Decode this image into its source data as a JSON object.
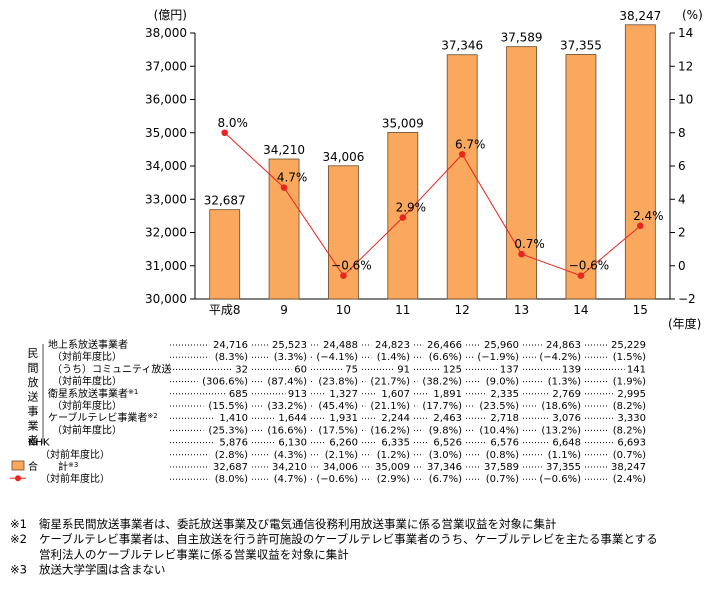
{
  "chart_data": {
    "type": "bar",
    "categories": [
      "平成8",
      "9",
      "10",
      "11",
      "12",
      "13",
      "14",
      "15"
    ],
    "x_unit": "(年度)",
    "left_unit": "(億円)",
    "right_unit": "(%)",
    "left_axis": {
      "ylim": [
        30000,
        38000
      ],
      "ticks": [
        "30,000",
        "31,000",
        "32,000",
        "33,000",
        "34,000",
        "35,000",
        "36,000",
        "37,000",
        "38,000"
      ]
    },
    "right_axis": {
      "ylim": [
        -2,
        14
      ],
      "ticks": [
        "-2",
        "0",
        "2",
        "4",
        "6",
        "8",
        "10",
        "12",
        "14"
      ]
    },
    "series": [
      {
        "name": "合計",
        "kind": "bar",
        "color": "#F9A85E",
        "values": [
          32687,
          34210,
          34006,
          35009,
          37346,
          37589,
          37355,
          38247
        ],
        "labels": [
          "32,687",
          "34,210",
          "34,006",
          "35,009",
          "37,346",
          "37,589",
          "37,355",
          "38,247"
        ]
      },
      {
        "name": "対前年度比",
        "kind": "line",
        "color": "#E8251F",
        "values": [
          8.0,
          4.7,
          -0.6,
          2.9,
          6.7,
          0.7,
          -0.6,
          2.4
        ],
        "labels": [
          "8.0%",
          "4.7%",
          "−0.6%",
          "2.9%",
          "6.7%",
          "0.7%",
          "−0.6%",
          "2.4%"
        ]
      }
    ]
  },
  "table": {
    "group_label": "民間放送事業者",
    "rows": [
      {
        "label": "地上系放送事業者",
        "values": [
          "24,716",
          "25,523",
          "24,488",
          "24,823",
          "26,466",
          "25,960",
          "24,863",
          "25,229"
        ]
      },
      {
        "label": "（対前年度比）",
        "values": [
          "(8.3%)",
          "(3.3%)",
          "(−4.1%)",
          "(1.4%)",
          "(6.6%)",
          "(−1.9%)",
          "(−4.2%)",
          "(1.5%)"
        ]
      },
      {
        "label": "（うち）コミュニティ放送",
        "values": [
          "32",
          "60",
          "75",
          "91",
          "125",
          "137",
          "139",
          "141"
        ]
      },
      {
        "label": "（対前年度比）",
        "values": [
          "(306.6%)",
          "(87.4%)",
          "(23.8%)",
          "(21.7%)",
          "(38.2%)",
          "(9.0%)",
          "(1.3%)",
          "(1.9%)"
        ]
      },
      {
        "label": "衛星系放送事業者",
        "sup": "※1",
        "values": [
          "685",
          "913",
          "1,327",
          "1,607",
          "1,891",
          "2,335",
          "2,769",
          "2,995"
        ]
      },
      {
        "label": "（対前年度比）",
        "values": [
          "(15.5%)",
          "(33.2%)",
          "(45.4%)",
          "(21.1%)",
          "(17.7%)",
          "(23.5%)",
          "(18.6%)",
          "(8.2%)"
        ]
      },
      {
        "label": "ケーブルテレビ事業者",
        "sup": "※2",
        "values": [
          "1,410",
          "1,644",
          "1,931",
          "2,244",
          "2,463",
          "2,718",
          "3,076",
          "3,330"
        ]
      },
      {
        "label": "（対前年度比）",
        "values": [
          "(25.3%)",
          "(16.6%)",
          "(17.5%)",
          "(16.2%)",
          "(9.8%)",
          "(10.4%)",
          "(13.2%)",
          "(8.2%)"
        ]
      },
      {
        "label": "NHK",
        "values": [
          "5,876",
          "6,130",
          "6,260",
          "6,335",
          "6,526",
          "6,576",
          "6,648",
          "6,693"
        ]
      },
      {
        "label": "（対前年度比）",
        "values": [
          "(2.8%)",
          "(4.3%)",
          "(2.1%)",
          "(1.2%)",
          "(3.0%)",
          "(0.8%)",
          "(1.1%)",
          "(0.7%)"
        ]
      },
      {
        "label": "合　　計",
        "sup": "※3",
        "values": [
          "32,687",
          "34,210",
          "34,006",
          "35,009",
          "37,346",
          "37,589",
          "37,355",
          "38,247"
        ]
      },
      {
        "label": "（対前年度比）",
        "values": [
          "(8.0%)",
          "(4.7%)",
          "(−0.6%)",
          "(2.9%)",
          "(6.7%)",
          "(0.7%)",
          "(−0.6%)",
          "(2.4%)"
        ]
      }
    ]
  },
  "footnotes": [
    {
      "mark": "※1",
      "text": "衛星系民間放送事業者は、委託放送事業及び電気通信役務利用放送事業に係る営業収益を対象に集計"
    },
    {
      "mark": "※2",
      "text": "ケーブルテレビ事業者は、自主放送を行う許可施設のケーブルテレビ事業者のうち、ケーブルテレビを主たる事業とする"
    },
    {
      "mark": "",
      "text": "営利法人のケーブルテレビ事業に係る営業収益を対象に集計"
    },
    {
      "mark": "※3",
      "text": "放送大学学園は含まない"
    }
  ]
}
